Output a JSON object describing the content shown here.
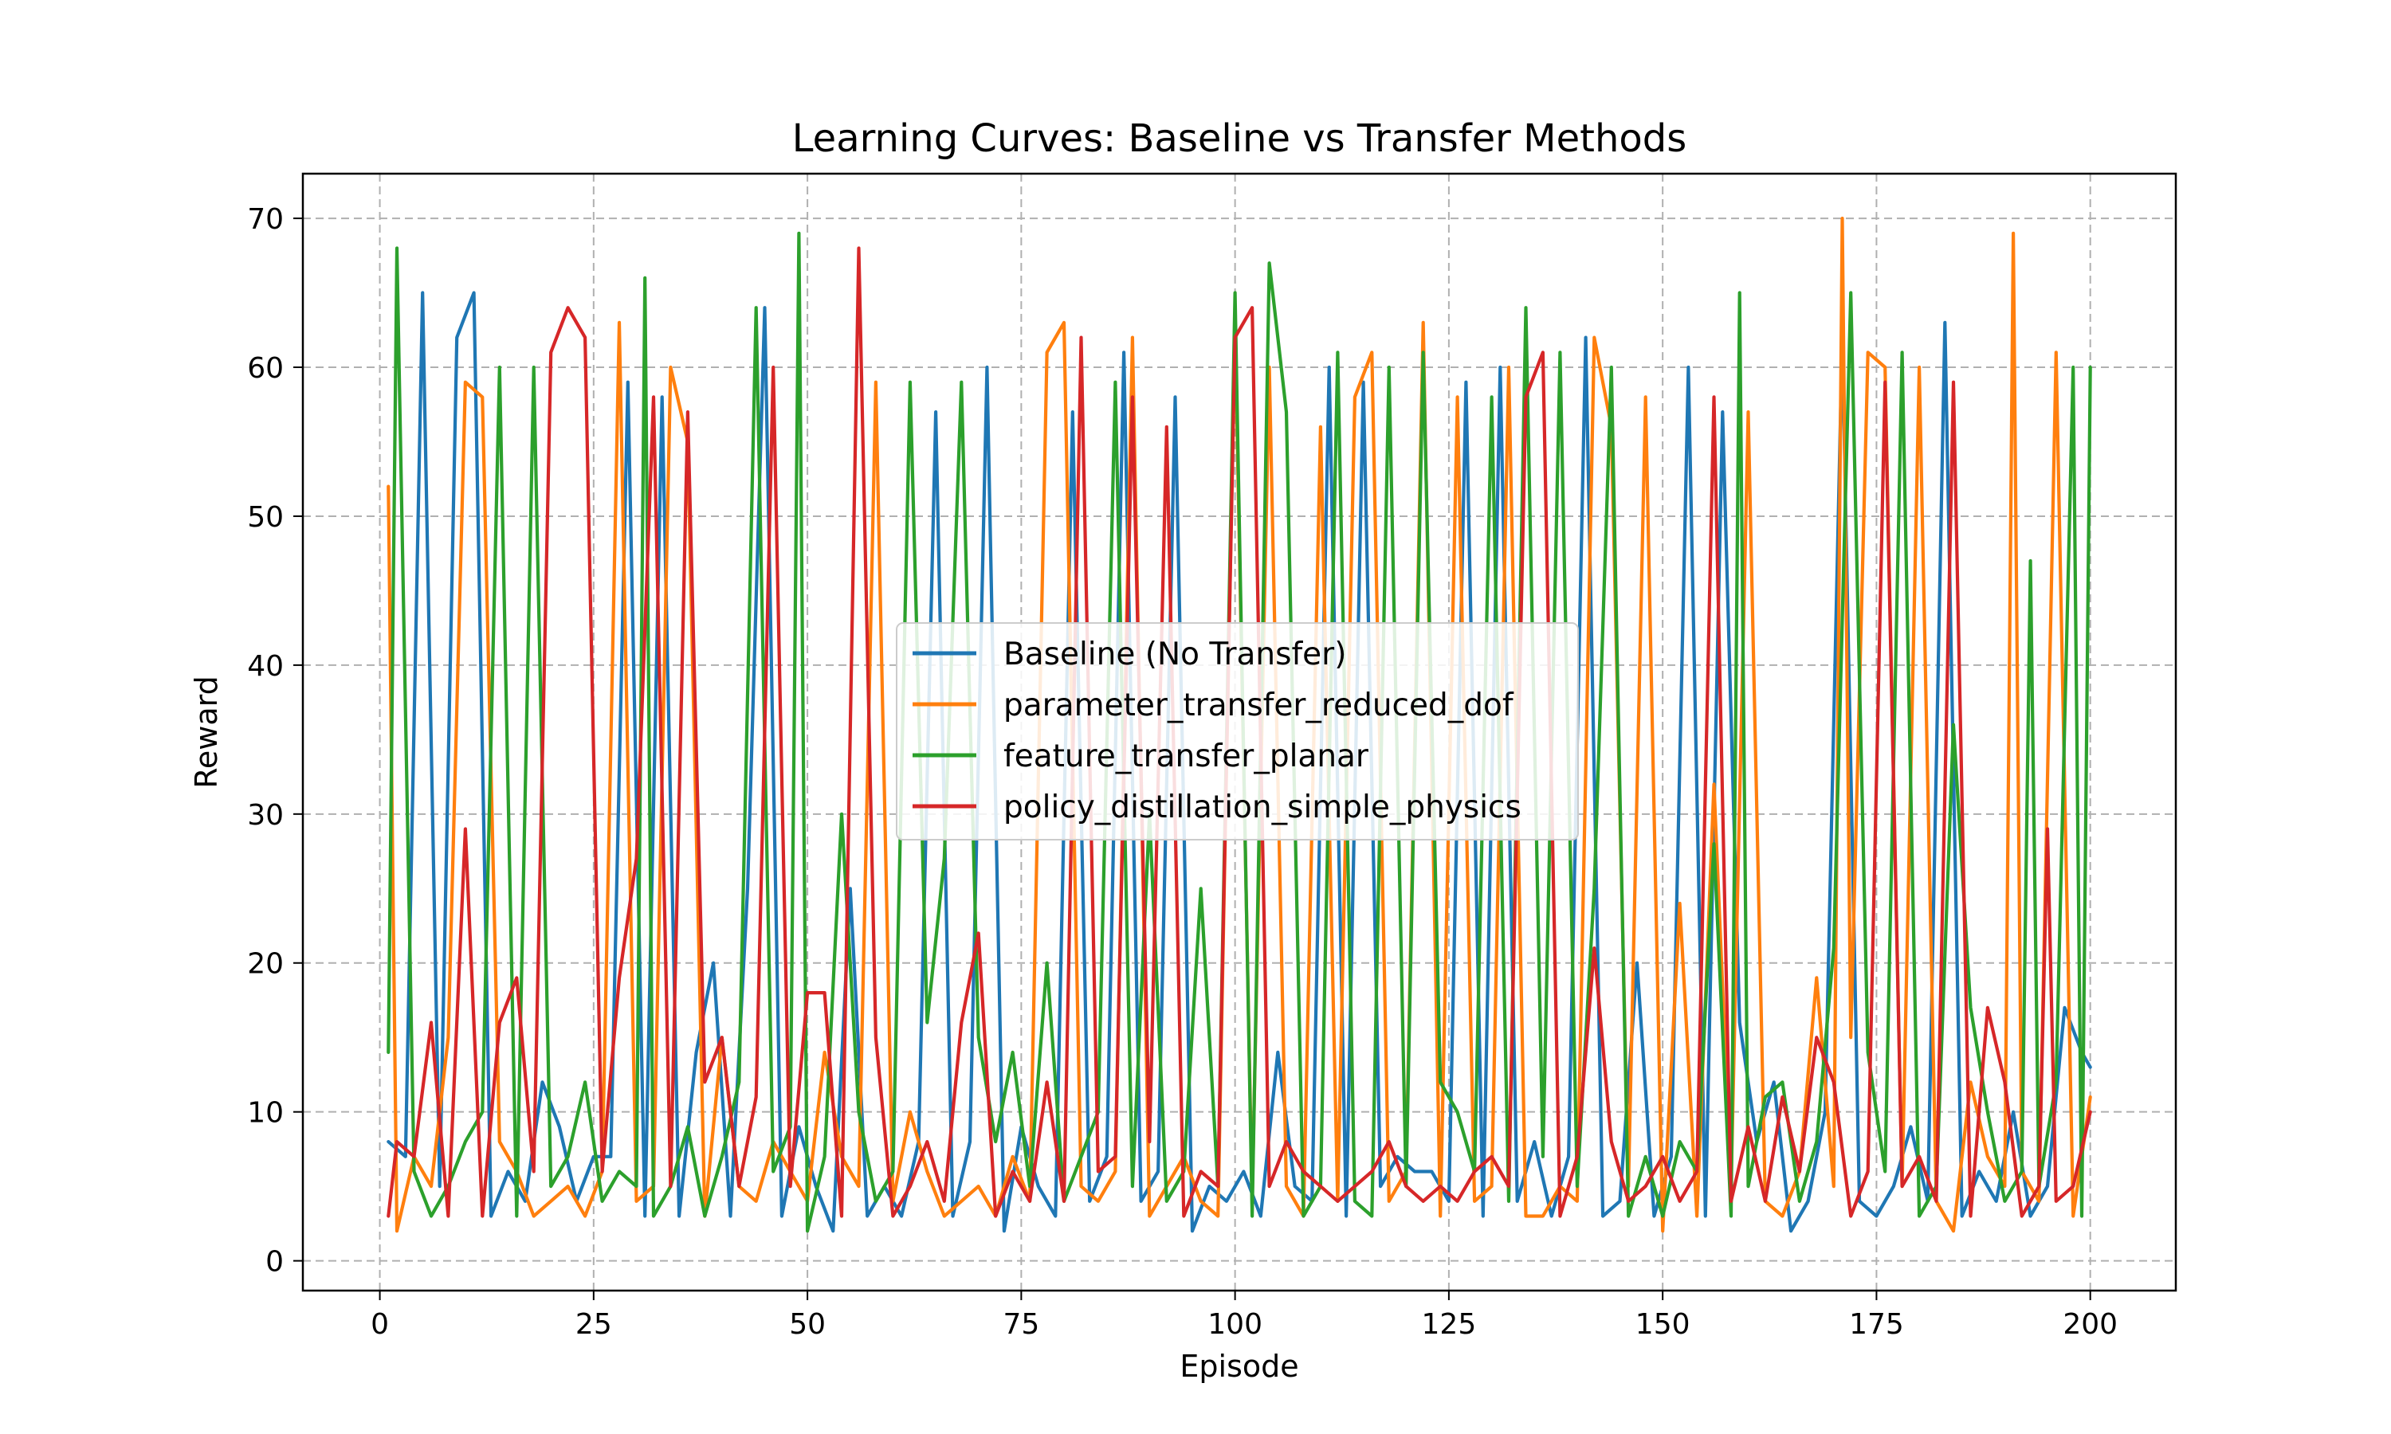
{
  "chart_data": {
    "type": "line",
    "title": "Learning Curves: Baseline vs Transfer Methods",
    "xlabel": "Episode",
    "ylabel": "Reward",
    "xlim": [
      -9,
      210
    ],
    "ylim": [
      -2,
      73
    ],
    "xticks": [
      0,
      25,
      50,
      75,
      100,
      125,
      150,
      175,
      200
    ],
    "yticks": [
      0,
      10,
      20,
      30,
      40,
      50,
      60,
      70
    ],
    "grid": true,
    "grid_style": "dashed",
    "legend_position": "center",
    "series": [
      {
        "name": "Baseline (No Transfer)",
        "color": "#1f77b4",
        "x": [
          1,
          3,
          5,
          7,
          9,
          11,
          13,
          15,
          17,
          19,
          21,
          23,
          25,
          27,
          29,
          31,
          33,
          35,
          37,
          39,
          41,
          43,
          45,
          47,
          49,
          51,
          53,
          55,
          57,
          59,
          61,
          63,
          65,
          67,
          69,
          71,
          73,
          75,
          77,
          79,
          81,
          83,
          85,
          87,
          89,
          91,
          93,
          95,
          97,
          99,
          101,
          103,
          105,
          107,
          109,
          111,
          113,
          115,
          117,
          119,
          121,
          123,
          125,
          127,
          129,
          131,
          133,
          135,
          137,
          139,
          141,
          143,
          145,
          147,
          149,
          151,
          153,
          155,
          157,
          159,
          161,
          163,
          165,
          167,
          169,
          171,
          173,
          175,
          177,
          179,
          181,
          183,
          185,
          187,
          189,
          191,
          193,
          195,
          197,
          199,
          200
        ],
        "values": [
          8,
          7,
          65,
          5,
          62,
          65,
          3,
          6,
          4,
          12,
          9,
          4,
          7,
          7,
          59,
          3,
          58,
          3,
          14,
          20,
          3,
          25,
          64,
          3,
          9,
          5,
          2,
          25,
          3,
          5,
          3,
          8,
          57,
          3,
          8,
          60,
          2,
          9,
          5,
          3,
          57,
          4,
          7,
          61,
          4,
          6,
          58,
          2,
          5,
          4,
          6,
          3,
          14,
          5,
          4,
          60,
          3,
          59,
          5,
          7,
          6,
          6,
          4,
          59,
          3,
          60,
          4,
          8,
          3,
          7,
          62,
          3,
          4,
          20,
          3,
          7,
          60,
          3,
          57,
          16,
          8,
          12,
          2,
          4,
          10,
          62,
          4,
          3,
          5,
          9,
          4,
          63,
          3,
          6,
          4,
          10,
          3,
          5,
          17,
          14,
          13
        ]
      },
      {
        "name": "parameter_transfer_reduced_dof",
        "color": "#ff7f0e",
        "x": [
          1,
          2,
          4,
          6,
          8,
          10,
          12,
          14,
          16,
          18,
          20,
          22,
          24,
          26,
          28,
          30,
          32,
          34,
          36,
          38,
          40,
          42,
          44,
          46,
          48,
          50,
          52,
          54,
          56,
          58,
          60,
          62,
          64,
          66,
          68,
          70,
          72,
          74,
          76,
          78,
          80,
          82,
          84,
          86,
          88,
          90,
          92,
          94,
          96,
          98,
          100,
          102,
          104,
          106,
          108,
          110,
          112,
          114,
          116,
          118,
          120,
          122,
          124,
          126,
          128,
          130,
          132,
          134,
          136,
          138,
          140,
          142,
          144,
          146,
          148,
          150,
          152,
          154,
          156,
          158,
          160,
          162,
          164,
          166,
          168,
          170,
          171,
          172,
          174,
          176,
          178,
          180,
          182,
          184,
          186,
          188,
          190,
          191,
          192,
          194,
          196,
          198,
          200
        ],
        "values": [
          52,
          2,
          7,
          5,
          15,
          59,
          58,
          8,
          6,
          3,
          4,
          5,
          3,
          6,
          63,
          4,
          5,
          60,
          55,
          3,
          15,
          5,
          4,
          8,
          6,
          4,
          14,
          7,
          5,
          59,
          4,
          10,
          6,
          3,
          4,
          5,
          3,
          7,
          4,
          61,
          63,
          5,
          4,
          6,
          62,
          3,
          5,
          7,
          4,
          3,
          63,
          4,
          60,
          5,
          3,
          56,
          4,
          58,
          61,
          4,
          6,
          63,
          3,
          58,
          4,
          5,
          60,
          3,
          3,
          5,
          4,
          62,
          56,
          5,
          58,
          2,
          24,
          3,
          32,
          5,
          57,
          4,
          3,
          6,
          19,
          5,
          70,
          15,
          61,
          60,
          5,
          60,
          4,
          2,
          12,
          7,
          5,
          69,
          6,
          4,
          61,
          3,
          11
        ]
      },
      {
        "name": "feature_transfer_planar",
        "color": "#2ca02c",
        "x": [
          1,
          2,
          4,
          6,
          8,
          10,
          12,
          14,
          16,
          18,
          20,
          22,
          24,
          26,
          28,
          30,
          31,
          32,
          34,
          36,
          38,
          40,
          42,
          44,
          46,
          48,
          49,
          50,
          52,
          54,
          56,
          58,
          60,
          62,
          64,
          66,
          68,
          70,
          72,
          74,
          76,
          78,
          80,
          82,
          84,
          86,
          88,
          90,
          92,
          94,
          96,
          98,
          100,
          102,
          104,
          106,
          108,
          110,
          112,
          114,
          116,
          118,
          120,
          122,
          124,
          126,
          128,
          130,
          132,
          134,
          136,
          138,
          140,
          142,
          144,
          146,
          148,
          150,
          152,
          154,
          156,
          158,
          159,
          160,
          162,
          164,
          166,
          168,
          170,
          172,
          174,
          176,
          178,
          180,
          182,
          184,
          186,
          188,
          190,
          192,
          193,
          194,
          196,
          198,
          199,
          200
        ],
        "values": [
          14,
          68,
          6,
          3,
          5,
          8,
          10,
          60,
          3,
          60,
          5,
          7,
          12,
          4,
          6,
          5,
          66,
          3,
          5,
          9,
          3,
          7,
          12,
          64,
          6,
          9,
          69,
          2,
          7,
          30,
          10,
          4,
          6,
          59,
          16,
          27,
          59,
          15,
          8,
          14,
          5,
          20,
          4,
          7,
          10,
          59,
          5,
          30,
          4,
          6,
          25,
          5,
          65,
          3,
          67,
          57,
          3,
          5,
          61,
          4,
          3,
          60,
          5,
          61,
          12,
          10,
          6,
          58,
          4,
          64,
          7,
          61,
          5,
          25,
          60,
          3,
          7,
          3,
          8,
          6,
          28,
          3,
          65,
          5,
          11,
          12,
          4,
          8,
          21,
          65,
          14,
          6,
          61,
          3,
          5,
          36,
          17,
          10,
          4,
          6,
          47,
          5,
          12,
          60,
          3,
          60
        ]
      },
      {
        "name": "policy_distillation_simple_physics",
        "color": "#d62728",
        "x": [
          1,
          2,
          4,
          6,
          8,
          10,
          12,
          14,
          16,
          18,
          20,
          22,
          24,
          26,
          28,
          30,
          32,
          34,
          36,
          38,
          40,
          42,
          44,
          46,
          48,
          50,
          52,
          54,
          56,
          58,
          60,
          62,
          64,
          66,
          68,
          70,
          72,
          74,
          76,
          78,
          80,
          82,
          84,
          86,
          88,
          90,
          92,
          94,
          96,
          98,
          100,
          102,
          104,
          106,
          108,
          110,
          112,
          114,
          116,
          118,
          120,
          122,
          124,
          126,
          128,
          130,
          132,
          134,
          136,
          138,
          140,
          142,
          144,
          146,
          148,
          150,
          152,
          154,
          156,
          158,
          160,
          162,
          164,
          166,
          168,
          170,
          172,
          174,
          176,
          178,
          180,
          182,
          184,
          186,
          188,
          190,
          192,
          194,
          195,
          196,
          198,
          200
        ],
        "values": [
          3,
          8,
          7,
          16,
          3,
          29,
          3,
          16,
          19,
          6,
          61,
          64,
          62,
          6,
          19,
          27,
          58,
          5,
          57,
          12,
          15,
          5,
          11,
          60,
          5,
          18,
          18,
          3,
          68,
          15,
          3,
          5,
          8,
          4,
          16,
          22,
          3,
          6,
          4,
          12,
          4,
          62,
          6,
          7,
          58,
          8,
          56,
          3,
          6,
          5,
          62,
          64,
          5,
          8,
          6,
          5,
          4,
          5,
          6,
          8,
          5,
          4,
          5,
          4,
          6,
          7,
          5,
          58,
          61,
          3,
          7,
          21,
          8,
          4,
          5,
          7,
          4,
          6,
          58,
          4,
          9,
          4,
          11,
          6,
          15,
          12,
          3,
          6,
          59,
          5,
          7,
          4,
          59,
          3,
          17,
          12,
          3,
          5,
          29,
          4,
          5,
          10
        ]
      }
    ]
  }
}
